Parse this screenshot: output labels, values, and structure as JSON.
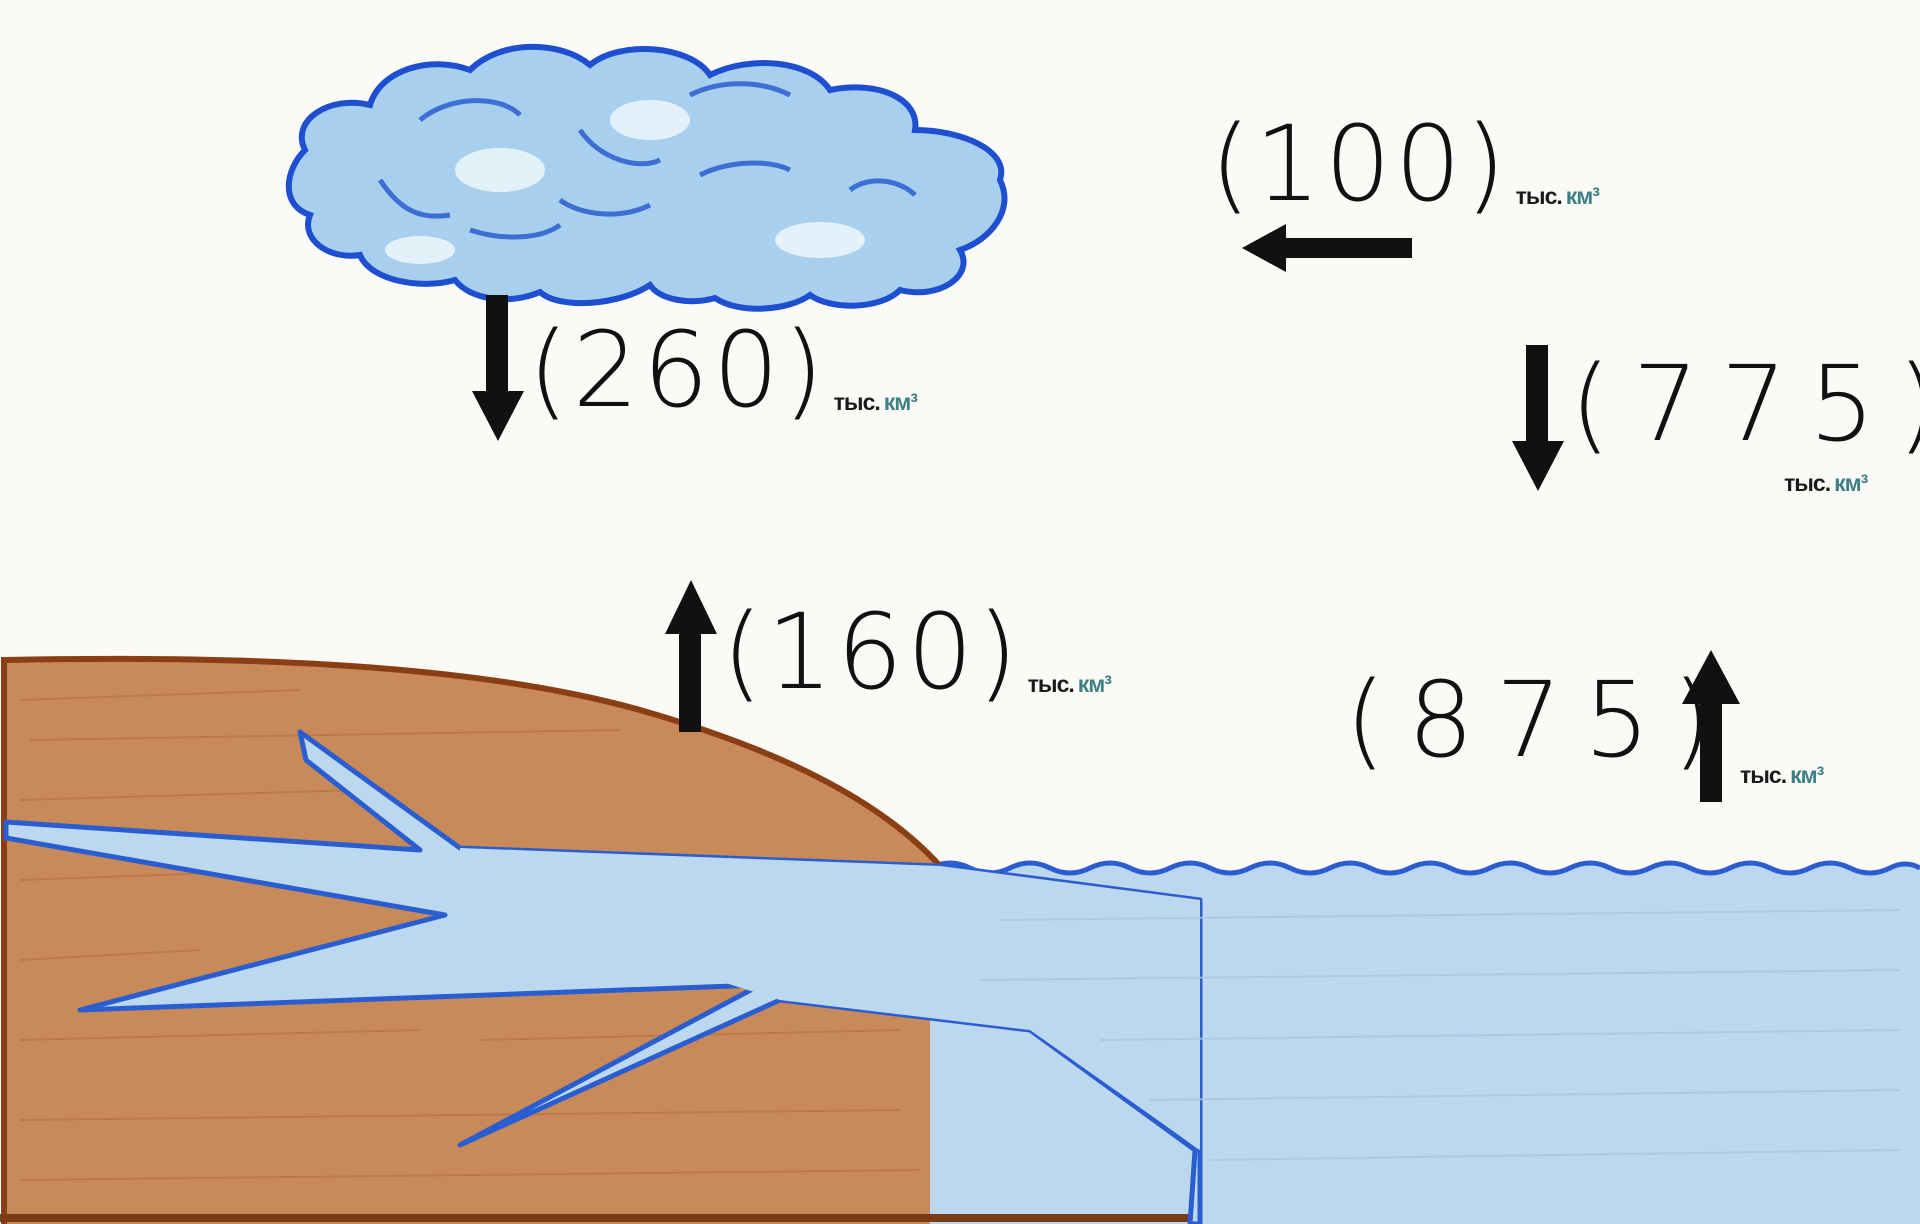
{
  "flows": [
    {
      "id": "sea-to-land-transport",
      "value": "100",
      "unit_a": "тыс.",
      "unit_b": "км³"
    },
    {
      "id": "land-precipitation",
      "value": "260",
      "unit_a": "тыс.",
      "unit_b": "км³"
    },
    {
      "id": "ocean-precipitation",
      "value": "775",
      "unit_a": "тыс.",
      "unit_b": "км³"
    },
    {
      "id": "land-evaporation",
      "value": "160",
      "unit_a": "тыс.",
      "unit_b": "км³"
    },
    {
      "id": "ocean-evaporation",
      "value": "875",
      "unit_a": "тыс.",
      "unit_b": "км³"
    }
  ],
  "colors": {
    "paper": "#fbfaf6",
    "land_fill": "#c98a5a",
    "land_outline": "#8a3e14",
    "water_fill": "#bcd8ee",
    "water_outline": "#2a5ed0",
    "cloud_fill": "#a8d0ee",
    "ink": "#111111",
    "unit_accent": "#3f7f86"
  }
}
